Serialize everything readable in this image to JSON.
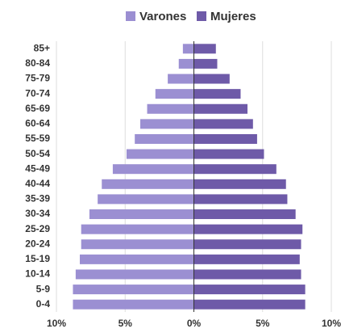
{
  "chart_data": {
    "type": "bar",
    "categories": [
      "85+",
      "80-84",
      "75-79",
      "70-74",
      "65-69",
      "60-64",
      "55-59",
      "50-54",
      "45-49",
      "40-44",
      "35-39",
      "30-34",
      "25-29",
      "20-24",
      "15-19",
      "10-14",
      "5-9",
      "0-4"
    ],
    "series": [
      {
        "name": "Varones",
        "color": "#9b8fd2",
        "values": [
          -0.8,
          -1.1,
          -1.9,
          -2.8,
          -3.4,
          -3.9,
          -4.3,
          -4.9,
          -5.9,
          -6.7,
          -7.0,
          -7.6,
          -8.2,
          -8.2,
          -8.3,
          -8.6,
          -8.8,
          -8.8
        ]
      },
      {
        "name": "Mujeres",
        "color": "#6e5aa8",
        "values": [
          1.6,
          1.7,
          2.6,
          3.4,
          3.9,
          4.3,
          4.6,
          5.1,
          6.0,
          6.7,
          6.8,
          7.4,
          7.9,
          7.8,
          7.7,
          7.8,
          8.1,
          8.1
        ]
      }
    ],
    "xlim": [
      -10,
      10
    ],
    "xticks": [
      {
        "value": -10,
        "label": "10%"
      },
      {
        "value": -5,
        "label": "5%"
      },
      {
        "value": 0,
        "label": "0%"
      },
      {
        "value": 5,
        "label": "5%"
      },
      {
        "value": 10,
        "label": "10%"
      }
    ],
    "grid": true,
    "legend": "top"
  }
}
